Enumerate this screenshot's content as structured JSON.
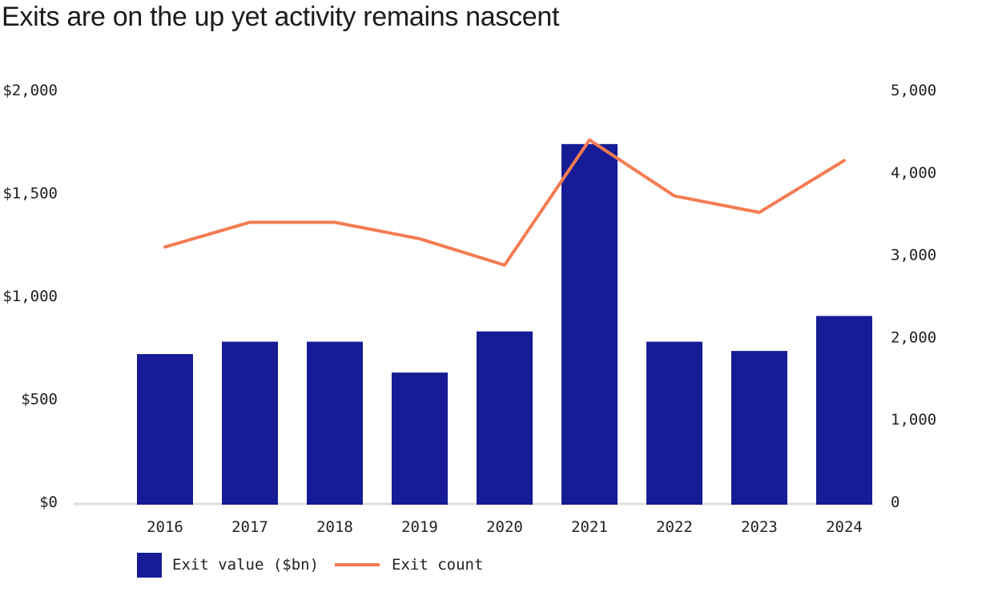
{
  "chart_data": {
    "type": "bar+line",
    "title": "Exits are on the up yet activity remains nascent",
    "categories": [
      "2016",
      "2017",
      "2018",
      "2019",
      "2020",
      "2021",
      "2022",
      "2023",
      "2024"
    ],
    "series": [
      {
        "name": "Exit value ($bn)",
        "type": "bar",
        "axis": "left",
        "color": "#171c96",
        "values": [
          720,
          780,
          780,
          630,
          830,
          1740,
          780,
          735,
          905
        ]
      },
      {
        "name": "Exit count",
        "type": "line",
        "axis": "right",
        "color": "#f47c52",
        "values": [
          3100,
          3400,
          3400,
          3200,
          2880,
          4400,
          3720,
          3520,
          4150
        ]
      }
    ],
    "y_left": {
      "ylim": [
        0,
        2000
      ],
      "ticks": [
        0,
        500,
        1000,
        1500,
        2000
      ],
      "tick_labels": [
        "$0",
        "$500",
        "$1,000",
        "$1,500",
        "$2,000"
      ]
    },
    "y_right": {
      "ylim": [
        0,
        5000
      ],
      "ticks": [
        0,
        1000,
        2000,
        3000,
        4000,
        5000
      ],
      "tick_labels": [
        "0",
        "1,000",
        "2,000",
        "3,000",
        "4,000",
        "5,000"
      ]
    },
    "grid": false,
    "legend": "bottom-left"
  }
}
